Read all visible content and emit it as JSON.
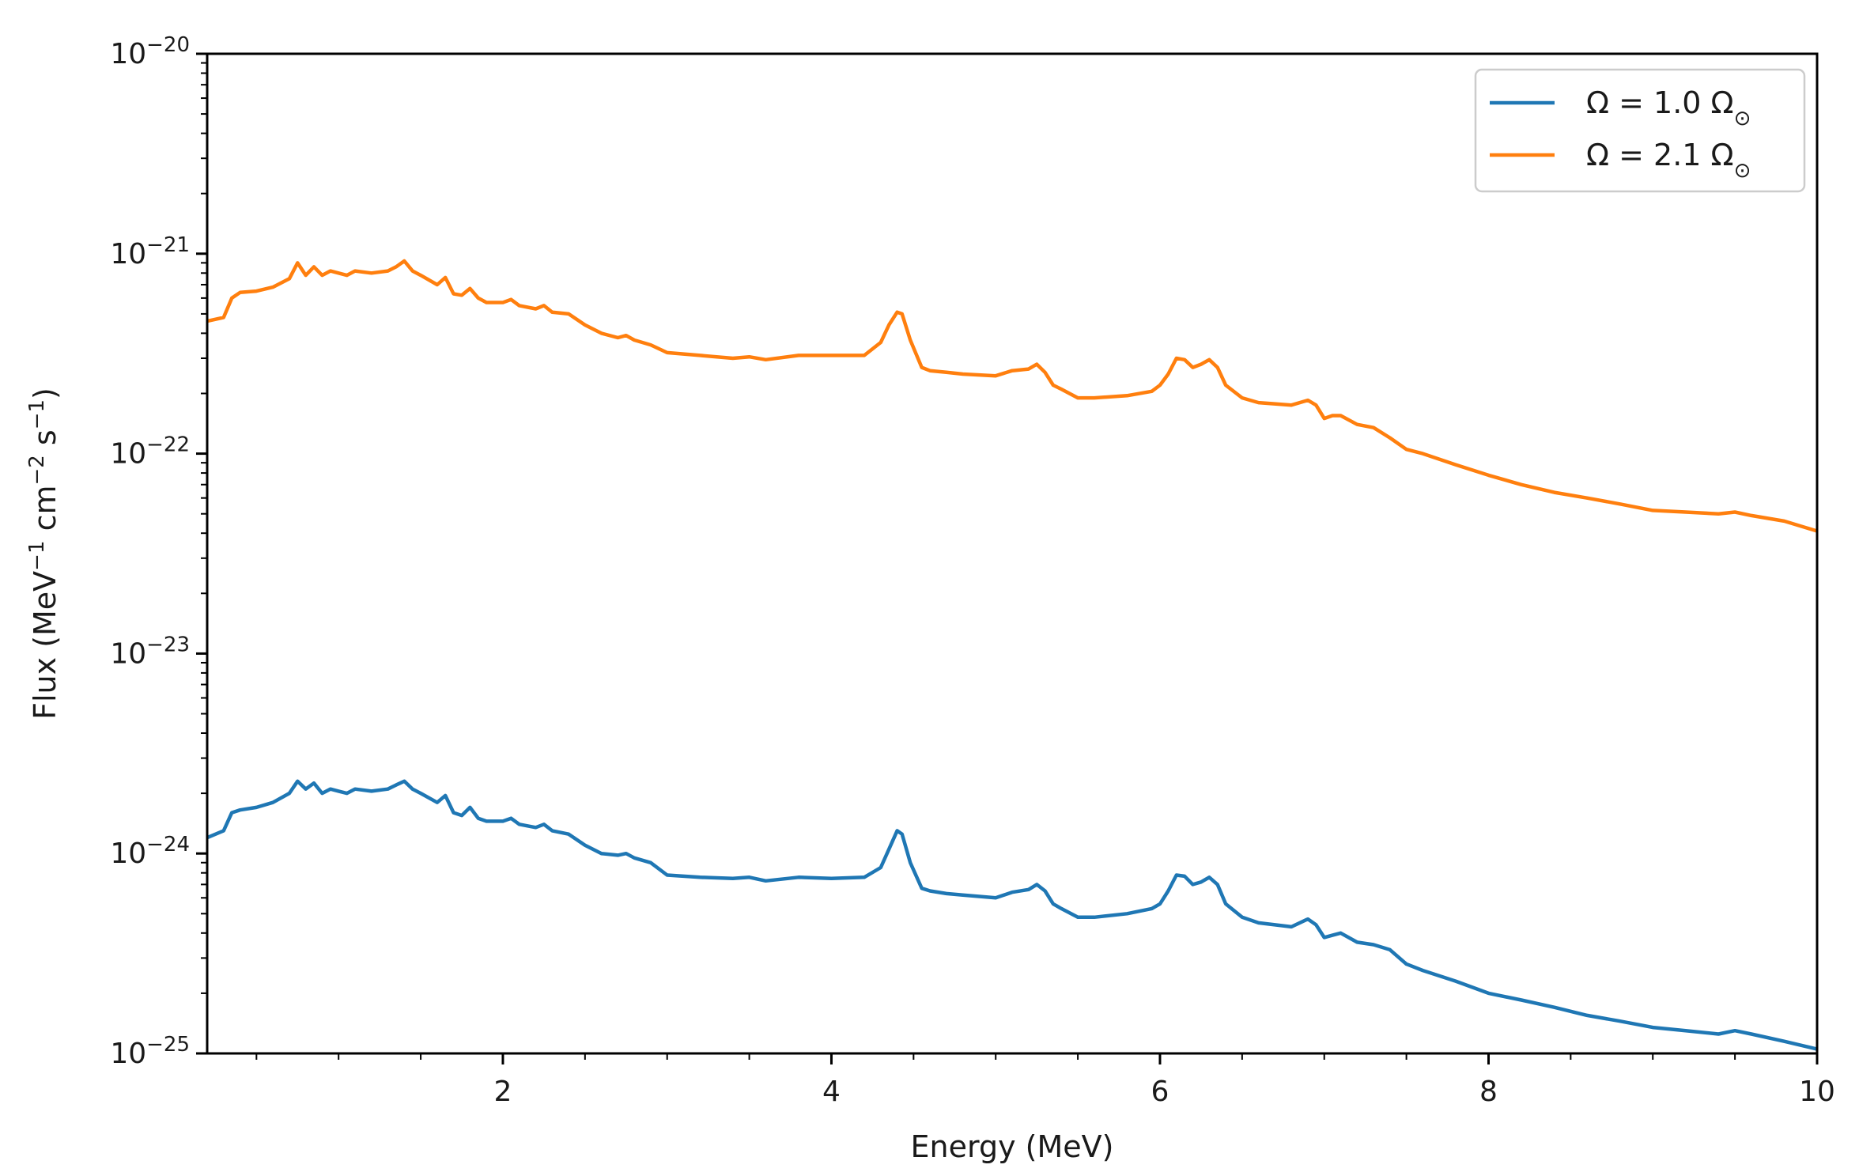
{
  "chart_data": {
    "type": "line",
    "title": "",
    "xlabel": "Energy (MeV)",
    "ylabel": "Flux (MeV⁻¹ cm⁻² s⁻¹)",
    "ylabel_parts": [
      "Flux (MeV",
      "−1",
      " cm",
      "−2",
      " s",
      "−1",
      ")"
    ],
    "xscale": "linear",
    "yscale": "log",
    "xlim": [
      0.2,
      10
    ],
    "ylim": [
      1e-25,
      1e-20
    ],
    "x_ticks": [
      {
        "value": 2,
        "label": "2"
      },
      {
        "value": 4,
        "label": "4"
      },
      {
        "value": 6,
        "label": "6"
      },
      {
        "value": 8,
        "label": "8"
      },
      {
        "value": 10,
        "label": "10"
      }
    ],
    "y_ticks": [
      {
        "exp": -20,
        "base": "10",
        "sup": "−20"
      },
      {
        "exp": -21,
        "base": "10",
        "sup": "−21"
      },
      {
        "exp": -22,
        "base": "10",
        "sup": "−22"
      },
      {
        "exp": -23,
        "base": "10",
        "sup": "−23"
      },
      {
        "exp": -24,
        "base": "10",
        "sup": "−24"
      },
      {
        "exp": -25,
        "base": "10",
        "sup": "−25"
      }
    ],
    "grid": false,
    "legend_position": "top-right",
    "series": [
      {
        "name": "Ω = 1.0 Ω⊙",
        "legend_prefix": "Ω = 1.0 Ω",
        "legend_sub": "⊙",
        "color": "#1f77b4",
        "x": [
          0.2,
          0.3,
          0.35,
          0.4,
          0.5,
          0.6,
          0.7,
          0.75,
          0.8,
          0.85,
          0.9,
          0.95,
          1.0,
          1.05,
          1.1,
          1.2,
          1.3,
          1.35,
          1.4,
          1.45,
          1.5,
          1.6,
          1.65,
          1.7,
          1.75,
          1.8,
          1.85,
          1.9,
          2.0,
          2.05,
          2.1,
          2.2,
          2.25,
          2.3,
          2.4,
          2.5,
          2.6,
          2.7,
          2.75,
          2.8,
          2.9,
          3.0,
          3.2,
          3.4,
          3.5,
          3.6,
          3.8,
          4.0,
          4.2,
          4.3,
          4.35,
          4.4,
          4.43,
          4.48,
          4.55,
          4.6,
          4.7,
          4.8,
          5.0,
          5.1,
          5.2,
          5.25,
          5.3,
          5.35,
          5.4,
          5.5,
          5.6,
          5.8,
          5.95,
          6.0,
          6.05,
          6.1,
          6.15,
          6.2,
          6.25,
          6.3,
          6.35,
          6.4,
          6.5,
          6.6,
          6.8,
          6.9,
          6.95,
          7.0,
          7.05,
          7.1,
          7.2,
          7.3,
          7.4,
          7.5,
          7.6,
          7.8,
          8.0,
          8.2,
          8.4,
          8.6,
          8.8,
          9.0,
          9.2,
          9.4,
          9.5,
          9.6,
          9.8,
          10.0
        ],
        "y": [
          1.2e-24,
          1.3e-24,
          1.6e-24,
          1.65e-24,
          1.7e-24,
          1.8e-24,
          2e-24,
          2.3e-24,
          2.1e-24,
          2.25e-24,
          2e-24,
          2.1e-24,
          2.05e-24,
          2e-24,
          2.1e-24,
          2.05e-24,
          2.1e-24,
          2.2e-24,
          2.3e-24,
          2.1e-24,
          2e-24,
          1.8e-24,
          1.95e-24,
          1.6e-24,
          1.55e-24,
          1.7e-24,
          1.5e-24,
          1.45e-24,
          1.45e-24,
          1.5e-24,
          1.4e-24,
          1.35e-24,
          1.4e-24,
          1.3e-24,
          1.25e-24,
          1.1e-24,
          1e-24,
          9.8e-25,
          1e-24,
          9.5e-25,
          9e-25,
          7.8e-25,
          7.6e-25,
          7.5e-25,
          7.6e-25,
          7.3e-25,
          7.6e-25,
          7.5e-25,
          7.6e-25,
          8.5e-25,
          1.05e-24,
          1.3e-24,
          1.25e-24,
          9e-25,
          6.7e-25,
          6.5e-25,
          6.3e-25,
          6.2e-25,
          6e-25,
          6.4e-25,
          6.6e-25,
          7e-25,
          6.5e-25,
          5.6e-25,
          5.3e-25,
          4.8e-25,
          4.8e-25,
          5e-25,
          5.3e-25,
          5.6e-25,
          6.5e-25,
          7.8e-25,
          7.7e-25,
          7e-25,
          7.2e-25,
          7.6e-25,
          7e-25,
          5.6e-25,
          4.8e-25,
          4.5e-25,
          4.3e-25,
          4.7e-25,
          4.4e-25,
          3.8e-25,
          3.9e-25,
          4e-25,
          3.6e-25,
          3.5e-25,
          3.3e-25,
          2.8e-25,
          2.6e-25,
          2.3e-25,
          2e-25,
          1.85e-25,
          1.7e-25,
          1.55e-25,
          1.45e-25,
          1.35e-25,
          1.3e-25,
          1.25e-25,
          1.3e-25,
          1.25e-25,
          1.15e-25,
          1.05e-25
        ]
      },
      {
        "name": "Ω = 2.1 Ω⊙",
        "legend_prefix": "Ω = 2.1 Ω",
        "legend_sub": "⊙",
        "color": "#ff7f0e",
        "x": [
          0.2,
          0.3,
          0.35,
          0.4,
          0.5,
          0.6,
          0.7,
          0.75,
          0.8,
          0.85,
          0.9,
          0.95,
          1.0,
          1.05,
          1.1,
          1.2,
          1.3,
          1.35,
          1.4,
          1.45,
          1.5,
          1.6,
          1.65,
          1.7,
          1.75,
          1.8,
          1.85,
          1.9,
          2.0,
          2.05,
          2.1,
          2.2,
          2.25,
          2.3,
          2.4,
          2.5,
          2.6,
          2.7,
          2.75,
          2.8,
          2.9,
          3.0,
          3.2,
          3.4,
          3.5,
          3.6,
          3.8,
          4.0,
          4.2,
          4.3,
          4.35,
          4.4,
          4.43,
          4.48,
          4.55,
          4.6,
          4.7,
          4.8,
          5.0,
          5.1,
          5.2,
          5.25,
          5.3,
          5.35,
          5.4,
          5.5,
          5.6,
          5.8,
          5.95,
          6.0,
          6.05,
          6.1,
          6.15,
          6.2,
          6.25,
          6.3,
          6.35,
          6.4,
          6.5,
          6.6,
          6.8,
          6.9,
          6.95,
          7.0,
          7.05,
          7.1,
          7.2,
          7.3,
          7.4,
          7.5,
          7.6,
          7.8,
          8.0,
          8.2,
          8.4,
          8.6,
          8.8,
          9.0,
          9.2,
          9.4,
          9.5,
          9.6,
          9.8,
          10.0
        ],
        "y": [
          4.6e-22,
          4.8e-22,
          6e-22,
          6.4e-22,
          6.5e-22,
          6.8e-22,
          7.5e-22,
          9e-22,
          7.8e-22,
          8.6e-22,
          7.8e-22,
          8.2e-22,
          8e-22,
          7.8e-22,
          8.2e-22,
          8e-22,
          8.2e-22,
          8.6e-22,
          9.2e-22,
          8.2e-22,
          7.8e-22,
          7e-22,
          7.6e-22,
          6.3e-22,
          6.2e-22,
          6.7e-22,
          6e-22,
          5.7e-22,
          5.7e-22,
          5.9e-22,
          5.5e-22,
          5.3e-22,
          5.5e-22,
          5.1e-22,
          5e-22,
          4.4e-22,
          4e-22,
          3.8e-22,
          3.9e-22,
          3.7e-22,
          3.5e-22,
          3.2e-22,
          3.1e-22,
          3e-22,
          3.05e-22,
          2.95e-22,
          3.1e-22,
          3.1e-22,
          3.1e-22,
          3.6e-22,
          4.4e-22,
          5.1e-22,
          5e-22,
          3.7e-22,
          2.7e-22,
          2.6e-22,
          2.55e-22,
          2.5e-22,
          2.45e-22,
          2.6e-22,
          2.65e-22,
          2.8e-22,
          2.55e-22,
          2.2e-22,
          2.1e-22,
          1.9e-22,
          1.9e-22,
          1.95e-22,
          2.05e-22,
          2.2e-22,
          2.5e-22,
          3e-22,
          2.95e-22,
          2.7e-22,
          2.8e-22,
          2.95e-22,
          2.7e-22,
          2.2e-22,
          1.9e-22,
          1.8e-22,
          1.75e-22,
          1.85e-22,
          1.75e-22,
          1.5e-22,
          1.55e-22,
          1.55e-22,
          1.4e-22,
          1.35e-22,
          1.2e-22,
          1.05e-22,
          1e-22,
          8.8e-23,
          7.8e-23,
          7e-23,
          6.4e-23,
          6e-23,
          5.6e-23,
          5.2e-23,
          5.1e-23,
          5e-23,
          5.1e-23,
          4.9e-23,
          4.6e-23,
          4.1e-23
        ]
      }
    ]
  }
}
